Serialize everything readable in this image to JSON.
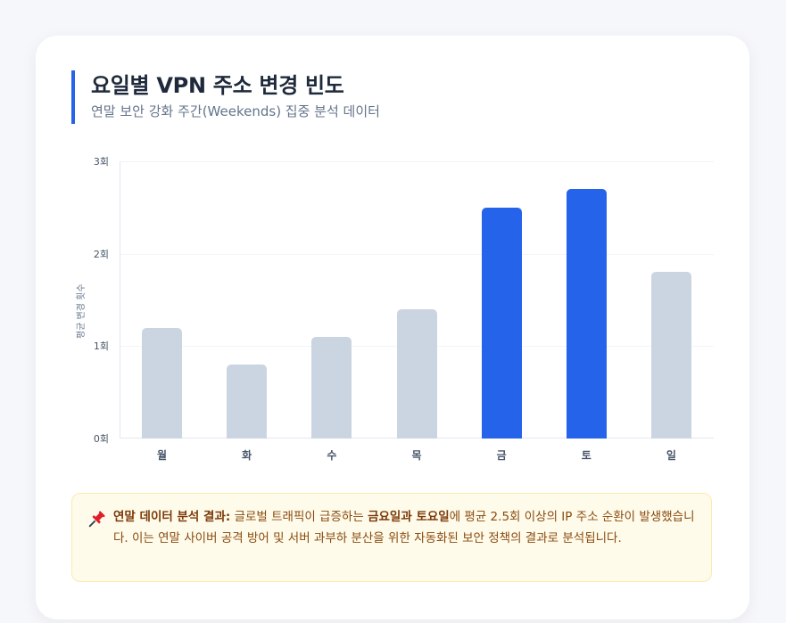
{
  "header": {
    "title": "요일별 VPN 주소 변경 빈도",
    "subtitle": "연말 보안 강화 주간(Weekends) 집중 분석 데이터"
  },
  "colors": {
    "accent": "#2563eb",
    "default_bar": "#cbd5e1",
    "highlight_bar": "#2563eb",
    "note_bg": "#fefbea",
    "note_text": "#8a4a0f"
  },
  "chart_data": {
    "type": "bar",
    "title": "요일별 VPN 주소 변경 빈도",
    "subtitle": "연말 보안 강화 주간(Weekends) 집중 분석 데이터",
    "categories": [
      "월",
      "화",
      "수",
      "목",
      "금",
      "토",
      "일"
    ],
    "values": [
      1.2,
      0.8,
      1.1,
      1.4,
      2.5,
      2.7,
      1.8
    ],
    "highlighted": [
      "금",
      "토"
    ],
    "xlabel": "",
    "ylabel": "평균 변경 횟수",
    "ylim": [
      0,
      3
    ],
    "yticks": [
      "0회",
      "1회",
      "2회",
      "3회"
    ],
    "grid": true,
    "legend": "none"
  },
  "note": {
    "icon": "pushpin-icon",
    "lead": "연말 데이터 분석 결과:",
    "text1": " 글로벌 트래픽이 급증하는 ",
    "bold": "금요일과 토요일",
    "text2": "에 평균 2.5회 이상의 IP 주소 순환이 발생했습니다. 이는 연말 사이버 공격 방어 및 서버 과부하 분산을 위한 자동화된 보안 정책의 결과로 분석됩니다."
  }
}
